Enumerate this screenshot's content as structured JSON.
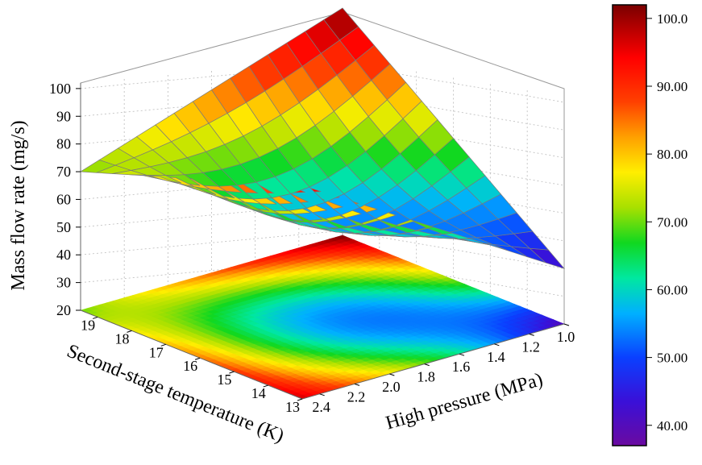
{
  "chart_data": {
    "type": "surface3d",
    "zlabel": "Mass flow rate (mg/s)",
    "xlabel": "Second-stage temperature (K)",
    "ylabel": "High pressure (MPa)",
    "x_ticks": [
      "19",
      "18",
      "17",
      "16",
      "15",
      "14",
      "13"
    ],
    "y_ticks": [
      "2.4",
      "2.2",
      "2.0",
      "1.8",
      "1.6",
      "1.4",
      "1.2",
      "1.0"
    ],
    "z_ticks": [
      "20",
      "30",
      "40",
      "50",
      "60",
      "70",
      "80",
      "90",
      "100"
    ],
    "x_range": [
      13,
      19.5
    ],
    "y_range": [
      1.0,
      2.5
    ],
    "z_range": [
      20,
      102
    ],
    "corner_values": {
      "T19.5_P1.0": 102,
      "T13_P1.0": 40,
      "T19.5_P2.5": 70,
      "T13_P2.5": 97
    },
    "colorbar": {
      "min": 37,
      "max": 102,
      "ticks": [
        "100.0",
        "90.00",
        "80.00",
        "70.00",
        "60.00",
        "50.00",
        "40.00"
      ]
    },
    "contour_projection": true,
    "grid": true
  }
}
